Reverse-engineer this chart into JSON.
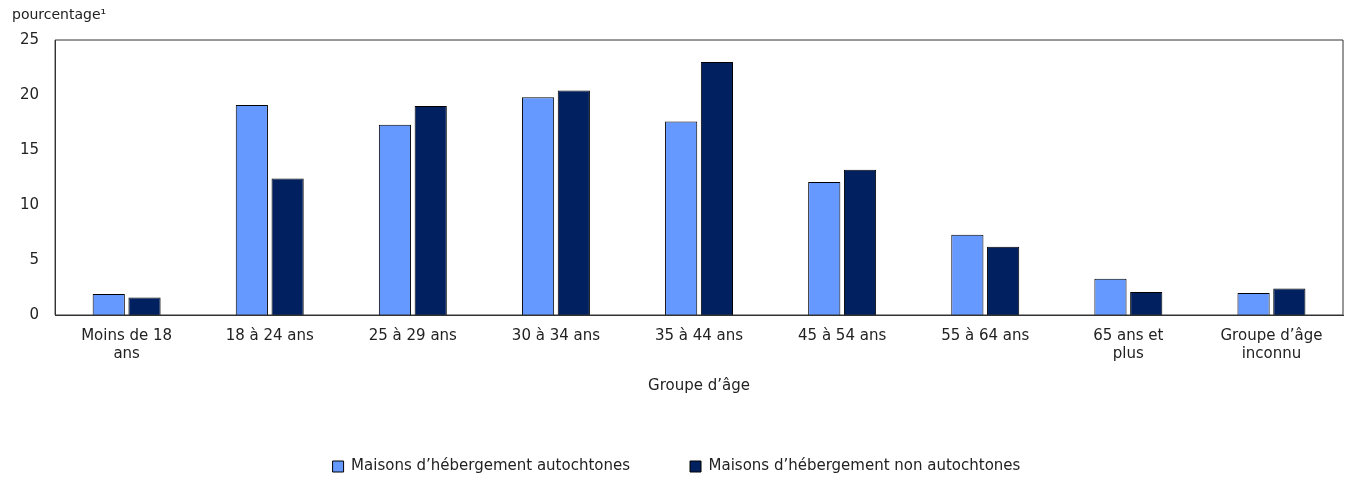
{
  "chart_data": {
    "type": "bar",
    "ylabel": "pourcentage¹",
    "xlabel": "Groupe d’âge",
    "categories": [
      "Moins de 18 ans",
      "18 à 24 ans",
      "25 à 29 ans",
      "30 à 34 ans",
      "35 à 44 ans",
      "45 à 54 ans",
      "55 à 64 ans",
      "65 ans et plus",
      "Groupe d’âge inconnu"
    ],
    "series": [
      {
        "name": "Maisons d’hébergement autochtones",
        "color": "#6699ff",
        "values": [
          1.9,
          19.1,
          17.3,
          19.8,
          17.6,
          12.1,
          7.3,
          3.3,
          2.0
        ]
      },
      {
        "name": "Maisons d’hébergement non autochtones",
        "color": "#002060",
        "values": [
          1.6,
          12.4,
          19.0,
          20.4,
          23.0,
          13.2,
          6.2,
          2.1,
          2.4
        ]
      }
    ],
    "ylim": [
      0,
      25
    ],
    "yticks": [
      0,
      5,
      10,
      15,
      20,
      25
    ],
    "grid": false,
    "legend": "bottom"
  }
}
